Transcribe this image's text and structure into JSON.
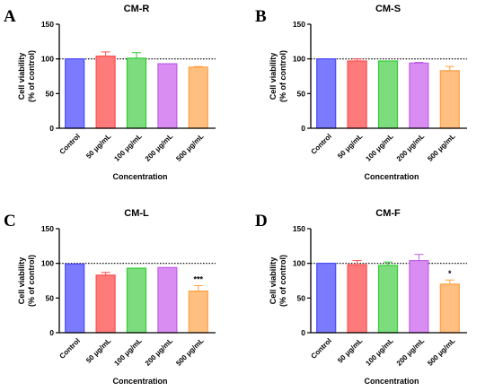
{
  "chart_data": [
    {
      "type": "bar",
      "panel": "A",
      "title": "CM-R",
      "categories": [
        "Control",
        "50 μg/mL",
        "100 μg/mL",
        "200 μg/mL",
        "500 μg/mL"
      ],
      "values": [
        100,
        104,
        101,
        93,
        88
      ],
      "errors": [
        0,
        6,
        8,
        0,
        1
      ],
      "significance": [
        "",
        "",
        "",
        "",
        ""
      ],
      "colors": [
        "#7b7bff",
        "#ff7a7a",
        "#7ddc7d",
        "#d98cf2",
        "#ffbf80"
      ],
      "edge_colors": [
        "#4a4aff",
        "#ff4d4d",
        "#33cc33",
        "#c060e8",
        "#ffa040"
      ],
      "xlabel": "Concentration",
      "ylabel_lines": [
        "Cell viability",
        "(% of control)"
      ],
      "ylim": [
        0,
        150
      ],
      "yticks": [
        0,
        50,
        100,
        150
      ],
      "reference_line": 100
    },
    {
      "type": "bar",
      "panel": "B",
      "title": "CM-S",
      "categories": [
        "Control",
        "50 μg/mL",
        "100 μg/mL",
        "200 μg/mL",
        "500 μg/mL"
      ],
      "values": [
        100,
        97,
        97,
        94,
        83
      ],
      "errors": [
        0,
        3,
        0,
        1,
        6
      ],
      "significance": [
        "",
        "",
        "",
        "",
        ""
      ],
      "colors": [
        "#7b7bff",
        "#ff7a7a",
        "#7ddc7d",
        "#d98cf2",
        "#ffbf80"
      ],
      "edge_colors": [
        "#4a4aff",
        "#ff4d4d",
        "#33cc33",
        "#c060e8",
        "#ffa040"
      ],
      "xlabel": "Concentration",
      "ylabel_lines": [
        "Cell viability",
        "(% of control)"
      ],
      "ylim": [
        0,
        150
      ],
      "yticks": [
        0,
        50,
        100,
        150
      ],
      "reference_line": 100
    },
    {
      "type": "bar",
      "panel": "C",
      "title": "CM-L",
      "categories": [
        "Control",
        "50 μg/mL",
        "100 μg/mL",
        "200 μg/mL",
        "500 μg/mL"
      ],
      "values": [
        99,
        83,
        93,
        94,
        60
      ],
      "errors": [
        0,
        4,
        0,
        0,
        8
      ],
      "significance": [
        "",
        "",
        "",
        "",
        "***"
      ],
      "colors": [
        "#7b7bff",
        "#ff7a7a",
        "#7ddc7d",
        "#d98cf2",
        "#ffbf80"
      ],
      "edge_colors": [
        "#4a4aff",
        "#ff4d4d",
        "#33cc33",
        "#c060e8",
        "#ffa040"
      ],
      "xlabel": "Concentration",
      "ylabel_lines": [
        "Cell viability",
        "(% of control)"
      ],
      "ylim": [
        0,
        150
      ],
      "yticks": [
        0,
        50,
        100,
        150
      ],
      "reference_line": 100
    },
    {
      "type": "bar",
      "panel": "D",
      "title": "CM-F",
      "categories": [
        "Control",
        "50 μg/mL",
        "100 μg/mL",
        "200 μg/mL",
        "500 μg/mL"
      ],
      "values": [
        100,
        98,
        97,
        104,
        70
      ],
      "errors": [
        0,
        6,
        5,
        9,
        6
      ],
      "significance": [
        "",
        "",
        "",
        "",
        "*"
      ],
      "colors": [
        "#7b7bff",
        "#ff7a7a",
        "#7ddc7d",
        "#d98cf2",
        "#ffbf80"
      ],
      "edge_colors": [
        "#4a4aff",
        "#ff4d4d",
        "#33cc33",
        "#c060e8",
        "#ffa040"
      ],
      "xlabel": "Concentration",
      "ylabel_lines": [
        "Cell viability",
        "(% of control)"
      ],
      "ylim": [
        0,
        150
      ],
      "yticks": [
        0,
        50,
        100,
        150
      ],
      "reference_line": 100
    }
  ]
}
